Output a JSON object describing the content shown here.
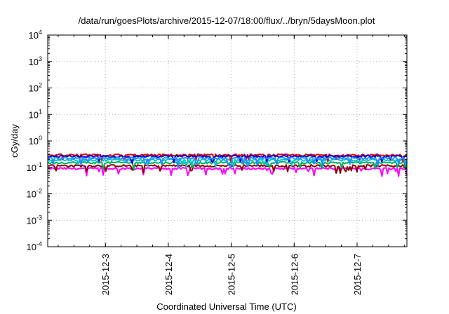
{
  "chart_data": {
    "type": "line",
    "title": "/data/run/goesPlots/archive/2015-12-07/18:00/flux/../bryn/5daysMoon.plot",
    "xlabel": "Coordinated Universal Time (UTC)",
    "ylabel": "cGy/day",
    "yscale": "log",
    "ylim": [
      0.0001,
      10000
    ],
    "xlim": [
      "2015-12-02 02:00",
      "2015-12-07 19:00"
    ],
    "grid": true,
    "legend": "none",
    "y_ticks": [
      {
        "base": "10",
        "exp": "-4",
        "value": 0.0001
      },
      {
        "base": "10",
        "exp": "-3",
        "value": 0.001
      },
      {
        "base": "10",
        "exp": "-2",
        "value": 0.01
      },
      {
        "base": "10",
        "exp": "-1",
        "value": 0.1
      },
      {
        "base": "10",
        "exp": "0",
        "value": 1
      },
      {
        "base": "10",
        "exp": "1",
        "value": 10
      },
      {
        "base": "10",
        "exp": "2",
        "value": 100
      },
      {
        "base": "10",
        "exp": "3",
        "value": 1000
      },
      {
        "base": "10",
        "exp": "4",
        "value": 10000
      }
    ],
    "x_ticks": [
      {
        "label": "2015-12-3",
        "value": "2015-12-03 00:00"
      },
      {
        "label": "2015-12-4",
        "value": "2015-12-04 00:00"
      },
      {
        "label": "2015-12-5",
        "value": "2015-12-05 00:00"
      },
      {
        "label": "2015-12-6",
        "value": "2015-12-06 00:00"
      },
      {
        "label": "2015-12-7",
        "value": "2015-12-07 00:00"
      }
    ],
    "series": [
      {
        "color": "#ff00ff",
        "base": 0.09,
        "dips": [
          0.07,
          0.045
        ],
        "x": [
          "2015-12-02 02:00",
          "2015-12-07 19:00"
        ],
        "values": [
          0.09,
          0.09
        ]
      },
      {
        "color": "#8b0000",
        "base": 0.115,
        "x": [
          "2015-12-02 02:00",
          "2015-12-07 19:00"
        ],
        "values": [
          0.115,
          0.115
        ]
      },
      {
        "color": "#00b060",
        "base": 0.15,
        "x": [
          "2015-12-02 02:00",
          "2015-12-07 19:00"
        ],
        "values": [
          0.15,
          0.15
        ]
      },
      {
        "color": "#00c8c8",
        "base": 0.19,
        "x": [
          "2015-12-02 02:00",
          "2015-12-07 19:00"
        ],
        "values": [
          0.19,
          0.19
        ]
      },
      {
        "color": "#e00000",
        "base": 0.29,
        "x": [
          "2015-12-02 02:00",
          "2015-12-07 19:00"
        ],
        "values": [
          0.29,
          0.29
        ]
      },
      {
        "color": "#0000e0",
        "base": 0.26,
        "x": [
          "2015-12-02 02:00",
          "2015-12-07 19:00"
        ],
        "values": [
          0.26,
          0.26
        ]
      },
      {
        "color": "#1e90ff",
        "base": 0.22,
        "dips": [
          0.1
        ],
        "x": [
          "2015-12-02 02:00",
          "2015-12-07 19:00"
        ],
        "values": [
          0.22,
          0.22
        ]
      }
    ]
  }
}
